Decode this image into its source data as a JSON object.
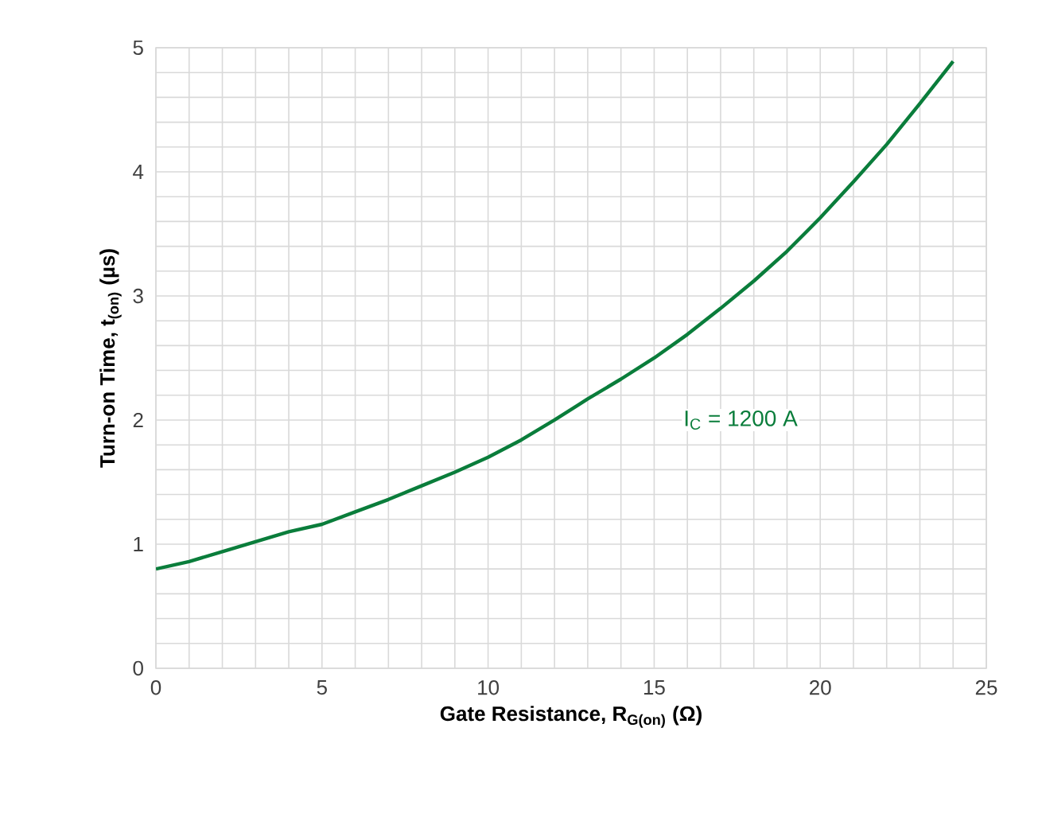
{
  "chart_data": {
    "type": "line",
    "xlabel": "Gate Resistance, R$_{G(on)}$ (Ω)",
    "ylabel": "Turn-on Time, t$_{(on)}$ (µs)",
    "x": [
      0,
      1,
      2,
      3,
      4,
      5,
      6,
      7,
      8,
      9,
      10,
      11,
      12,
      13,
      14,
      15,
      16,
      17,
      18,
      19,
      20,
      21,
      22,
      23,
      24
    ],
    "series": [
      {
        "color": "#0a7d3b",
        "values": [
          0.8,
          0.86,
          0.94,
          1.02,
          1.1,
          1.16,
          1.26,
          1.36,
          1.47,
          1.58,
          1.7,
          1.84,
          2.0,
          2.17,
          2.33,
          2.5,
          2.69,
          2.9,
          3.12,
          3.36,
          3.63,
          3.92,
          4.22,
          4.55,
          4.89
        ]
      }
    ],
    "xlim": [
      0,
      25
    ],
    "ylim": [
      0,
      5
    ],
    "xticks": [
      0,
      5,
      10,
      15,
      20,
      25
    ],
    "yticks": [
      0,
      1,
      2,
      3,
      4,
      5
    ],
    "grid": true,
    "marker": "none",
    "line_style": "solid",
    "annotations": [
      "I$_{C}$ = 1200 A"
    ]
  }
}
